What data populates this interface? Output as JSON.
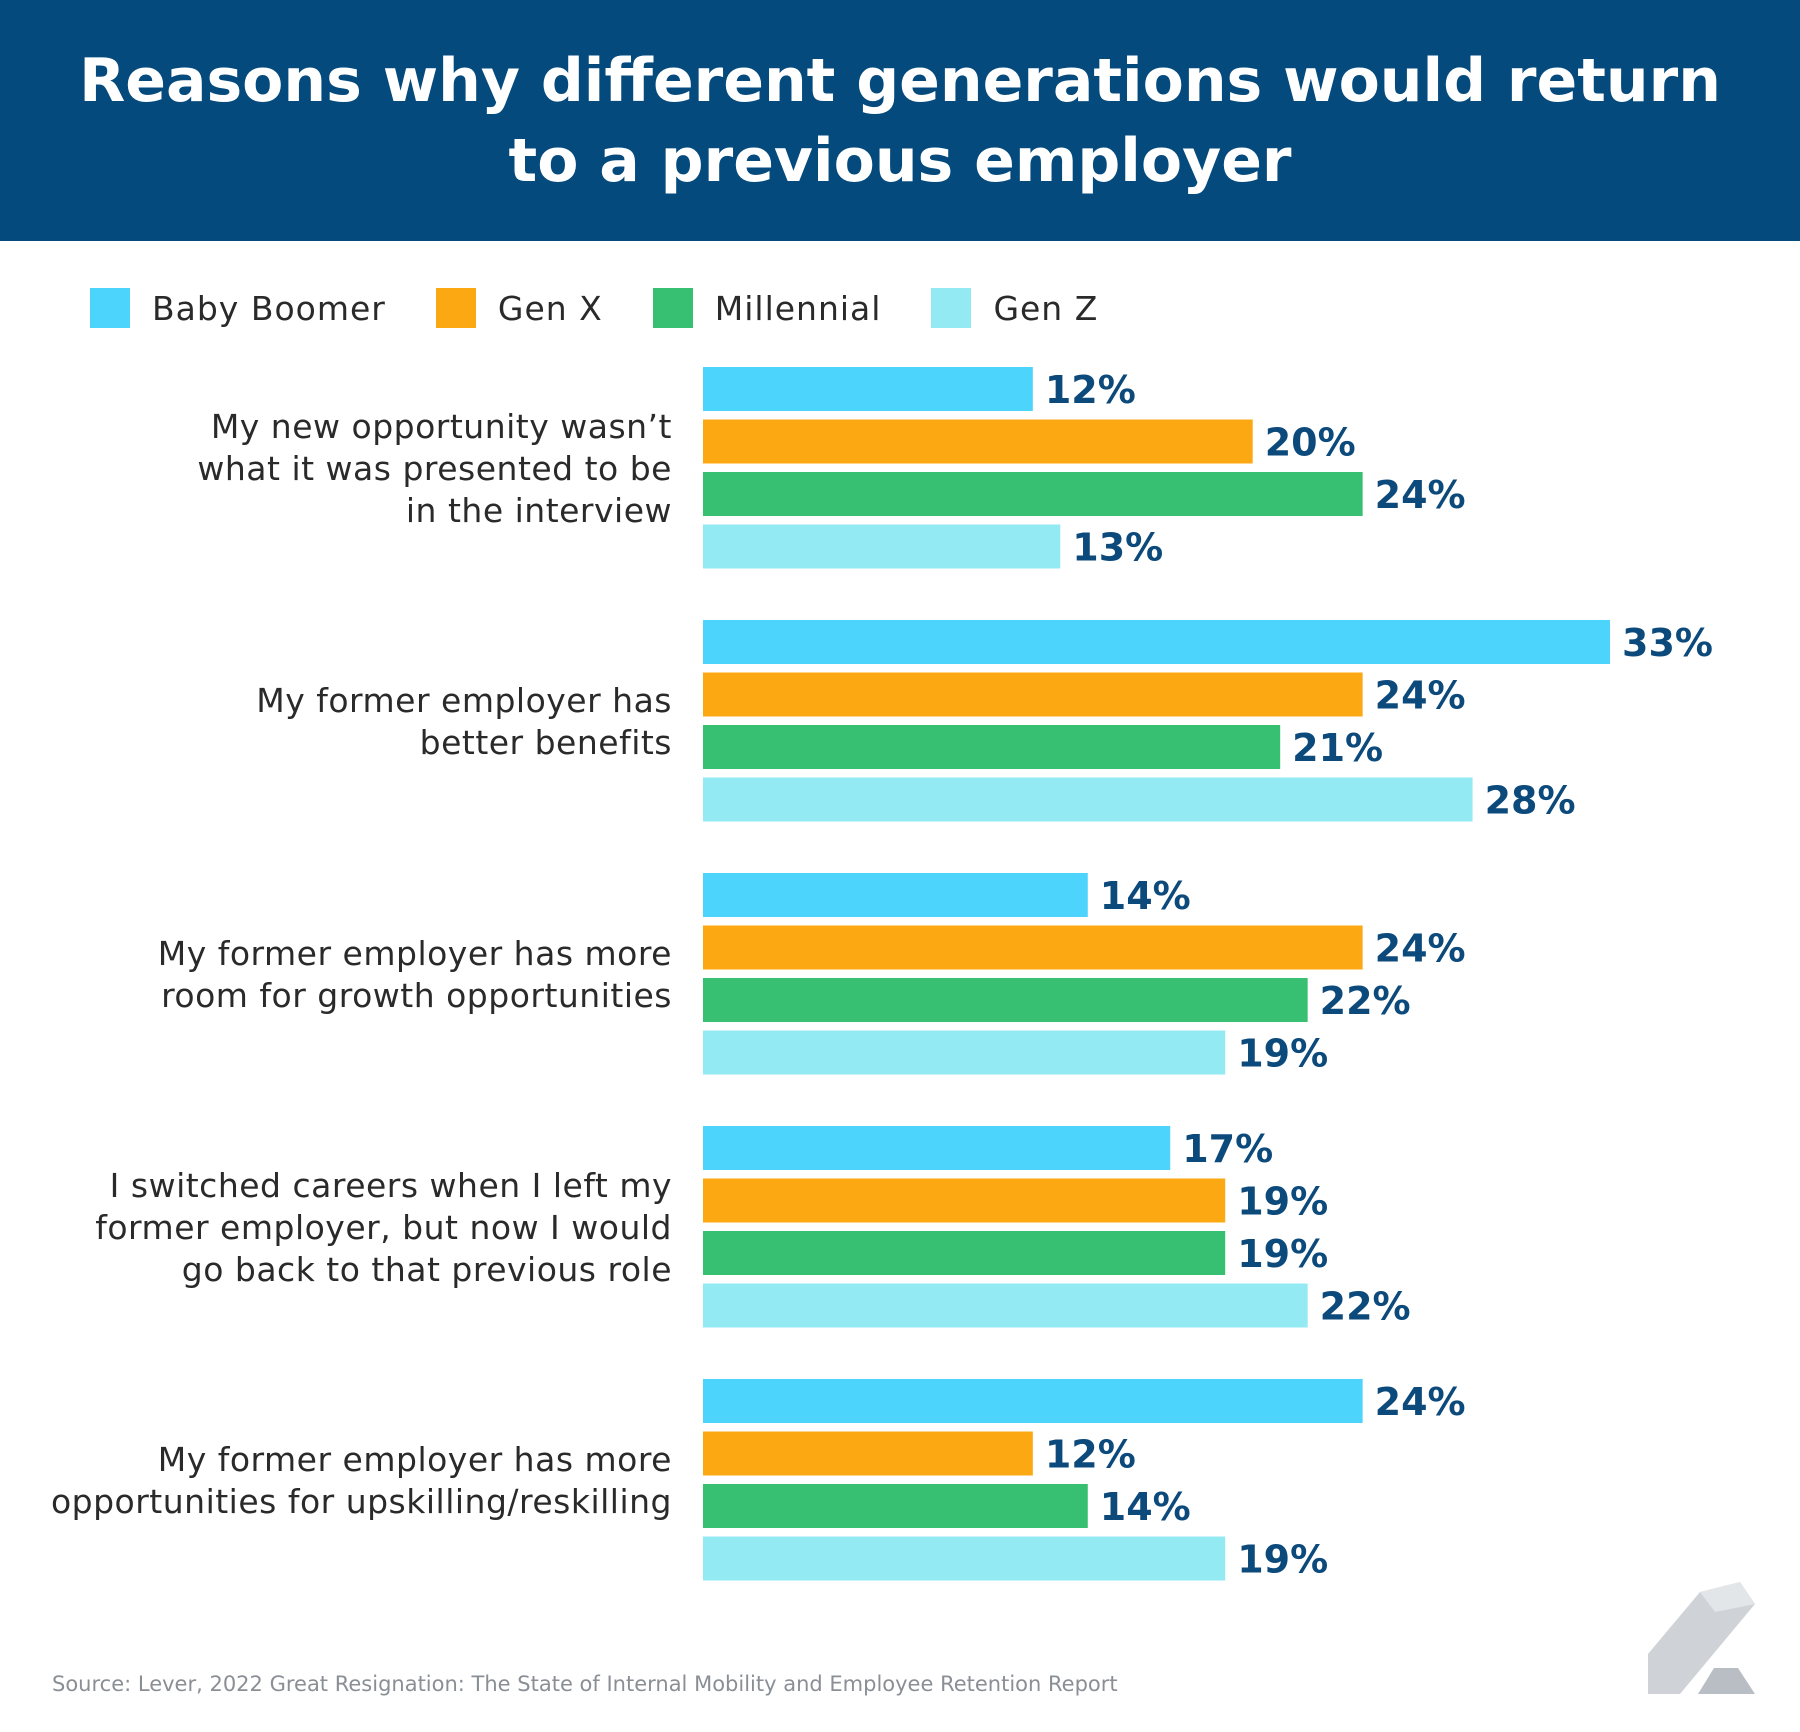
{
  "chart_data": {
    "type": "bar",
    "orientation": "horizontal",
    "title": "Reasons why different generations would return to a previous employer",
    "categories": [
      [
        "My new opportunity wasn’t",
        "what it was presented to be",
        "in the interview"
      ],
      [
        "My former employer has",
        "better benefits"
      ],
      [
        "My former employer has more",
        "room for growth opportunities"
      ],
      [
        "I switched careers when I left my",
        "former employer, but now I would",
        "go back to that previous role"
      ],
      [
        "My former employer has more",
        "opportunities for upskilling/reskilling"
      ]
    ],
    "series": [
      {
        "name": "Baby Boomer",
        "color": "#4dd4fc",
        "values": [
          12,
          33,
          14,
          17,
          24
        ]
      },
      {
        "name": "Gen X",
        "color": "#fca812",
        "values": [
          20,
          24,
          24,
          19,
          12
        ]
      },
      {
        "name": "Millennial",
        "color": "#38c072",
        "values": [
          24,
          21,
          22,
          19,
          14
        ]
      },
      {
        "name": "Gen Z",
        "color": "#93eaf3",
        "values": [
          13,
          28,
          19,
          22,
          19
        ]
      }
    ],
    "value_suffix": "%",
    "xlim": [
      0,
      33
    ],
    "legend": "top-left",
    "grid": false
  },
  "source": "Source: Lever, 2022 Great Resignation: The State of Internal Mobility and Employee Retention Report",
  "logo_icon": "lever-logo-icon"
}
